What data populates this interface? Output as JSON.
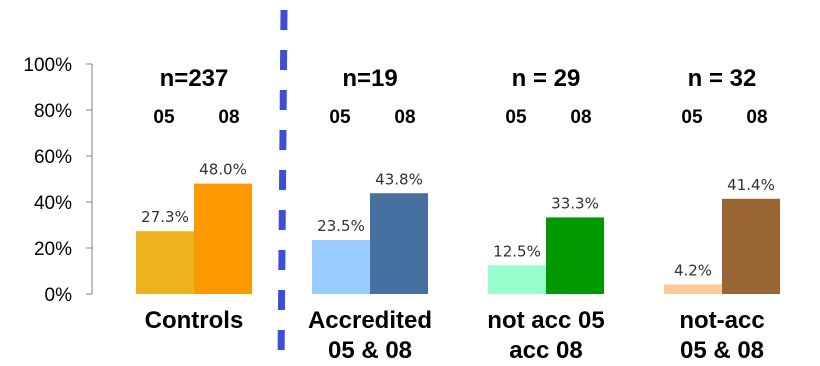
{
  "chart_data": {
    "type": "bar",
    "ylim": [
      0,
      100
    ],
    "y_ticks": [
      "0%",
      "20%",
      "40%",
      "60%",
      "80%",
      "100%"
    ],
    "grid": false,
    "groups": [
      {
        "category": [
          "Controls"
        ],
        "n_label": "n=237",
        "year_labels": [
          "05",
          "08"
        ],
        "values": [
          27.3,
          48.0
        ],
        "value_labels": [
          "27.3%",
          "48.0%"
        ],
        "colors": [
          "#EDB31E",
          "#FF9900"
        ]
      },
      {
        "category": [
          "Accredited",
          "05 & 08"
        ],
        "n_label": "n=19",
        "year_labels": [
          "05",
          "08"
        ],
        "values": [
          23.5,
          43.8
        ],
        "value_labels": [
          "23.5%",
          "43.8%"
        ],
        "colors": [
          "#99CCFF",
          "#4670A0"
        ]
      },
      {
        "category": [
          "not acc 05",
          "acc 08"
        ],
        "n_label": "n = 29",
        "year_labels": [
          "05",
          "08"
        ],
        "values": [
          12.5,
          33.3
        ],
        "value_labels": [
          "12.5%",
          "33.3%"
        ],
        "colors": [
          "#99FFCC",
          "#009900"
        ]
      },
      {
        "category": [
          "not-acc",
          "05 & 08"
        ],
        "n_label": "n = 32",
        "year_labels": [
          "05",
          "08"
        ],
        "values": [
          4.2,
          41.4
        ],
        "value_labels": [
          "4.2%",
          "41.4%"
        ],
        "colors": [
          "#FFCC99",
          "#996633"
        ]
      }
    ],
    "divider_color": "#3D4FD6"
  }
}
